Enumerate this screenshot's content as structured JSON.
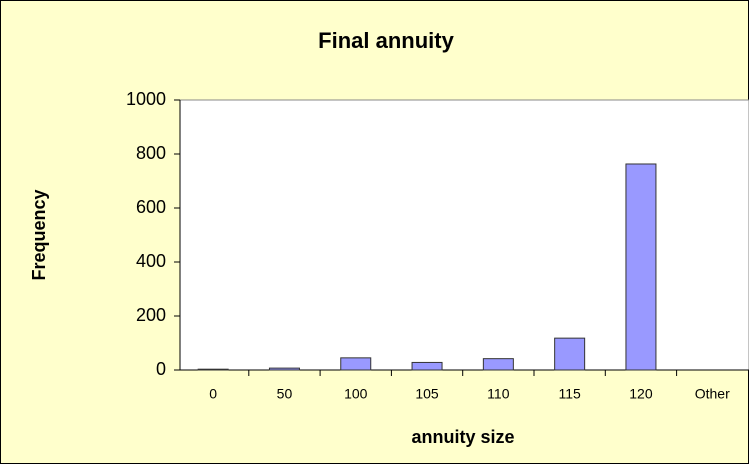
{
  "chart_data": {
    "type": "bar",
    "title": "Final annuity",
    "x_label": "annuity size",
    "y_label": "Frequency",
    "categories": [
      "0",
      "50",
      "100",
      "105",
      "110",
      "115",
      "120",
      "Other"
    ],
    "values": [
      3,
      7,
      45,
      28,
      42,
      118,
      763,
      0
    ],
    "color": "#9999ff",
    "ylim": [
      0,
      1000
    ],
    "yticks": [
      0,
      200,
      400,
      600,
      800,
      1000
    ]
  }
}
